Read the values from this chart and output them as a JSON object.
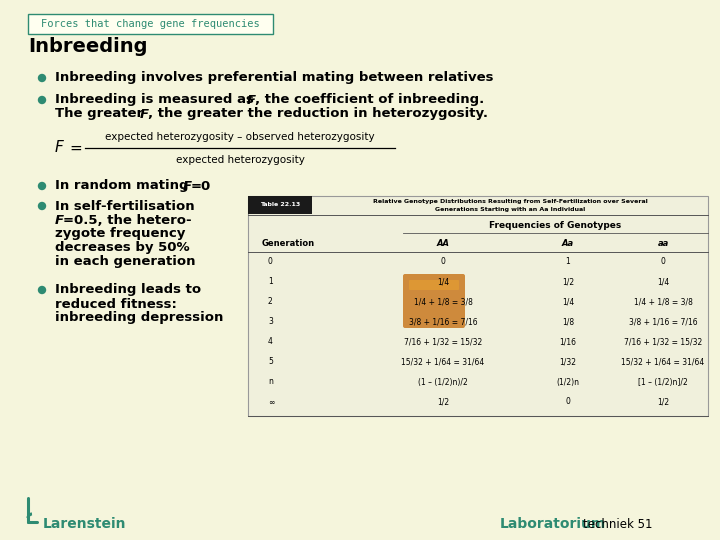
{
  "bg_color": "#F5F5DC",
  "teal_color": "#2E8B72",
  "dark_teal": "#2E8B72",
  "title_box_text": "Forces that change gene frequencies",
  "heading": "Inbreeding",
  "formula_num": "expected heterozygosity – observed heterozygosity",
  "formula_den": "expected heterozygosity",
  "footer_left_bold": "Larenstein",
  "footer_right_bold": "Laboratorium",
  "footer_right_normal": "techniek 51",
  "table_rows": [
    [
      "0",
      "0",
      "1",
      "0"
    ],
    [
      "1",
      "1/4",
      "1/2",
      "1/4"
    ],
    [
      "2",
      "1/4 + 1/8 = 3/8",
      "1/4",
      "1/4 + 1/8 = 3/8"
    ],
    [
      "3",
      "3/8 + 1/16 = 7/16",
      "1/8",
      "3/8 + 1/16 = 7/16"
    ],
    [
      "4",
      "7/16 + 1/32 = 15/32",
      "1/16",
      "7/16 + 1/32 = 15/32"
    ],
    [
      "5",
      "15/32 + 1/64 = 31/64",
      "1/32",
      "15/32 + 1/64 = 31/64"
    ],
    [
      "n",
      "(1 – (1/2)n)/2",
      "(1/2)n",
      "[1 – (1/2)n]/2"
    ],
    [
      "∞",
      "1/2",
      "0",
      "1/2"
    ]
  ]
}
